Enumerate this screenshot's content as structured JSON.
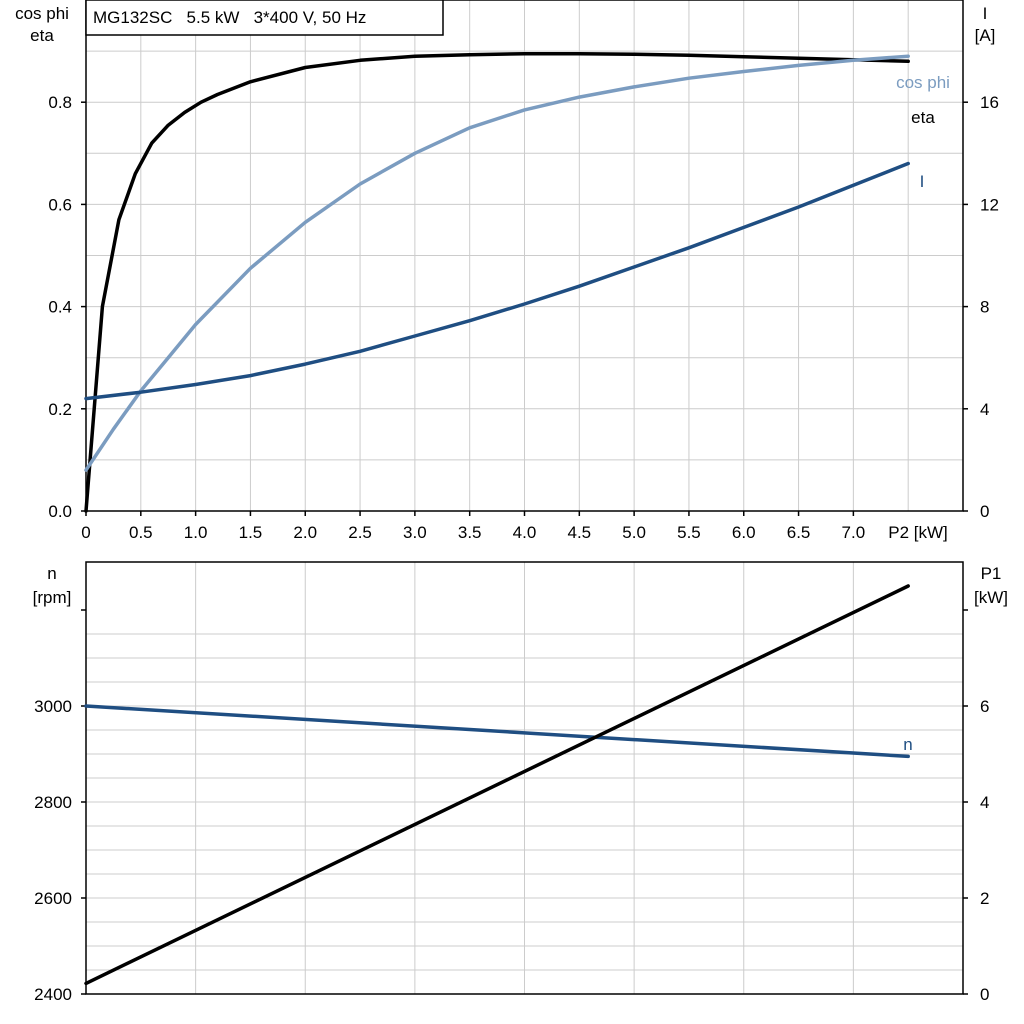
{
  "chart_data": [
    {
      "type": "line",
      "title": "MG132SC   5.5 kW   3*400 V, 50 Hz",
      "xlabel": "P2 [kW]",
      "ylabel_left": [
        "cos phi",
        "eta"
      ],
      "ylabel_right": [
        "I",
        "[A]"
      ],
      "xlim": [
        0,
        8
      ],
      "ylim_left": [
        0,
        1
      ],
      "ylim_right": [
        0,
        20
      ],
      "x_ticks": [
        0,
        0.5,
        1.0,
        1.5,
        2.0,
        2.5,
        3.0,
        3.5,
        4.0,
        4.5,
        5.0,
        5.5,
        6.0,
        6.5,
        7.0
      ],
      "x_tick_labels": [
        "0",
        "0.5",
        "1.0",
        "1.5",
        "2.0",
        "2.5",
        "3.0",
        "3.5",
        "4.0",
        "4.5",
        "5.0",
        "5.5",
        "6.0",
        "6.5",
        "7.0"
      ],
      "y_left_ticks": [
        0,
        0.2,
        0.4,
        0.6,
        0.8
      ],
      "y_left_tick_labels": [
        "0.0",
        "0.2",
        "0.4",
        "0.6",
        "0.8"
      ],
      "y_right_ticks": [
        0,
        4,
        8,
        12,
        16
      ],
      "y_right_tick_labels": [
        "0",
        "4",
        "8",
        "12",
        "16"
      ],
      "grid": true,
      "series": [
        {
          "name": "eta",
          "axis": "left",
          "color": "#000000",
          "x": [
            0,
            0.15,
            0.3,
            0.45,
            0.6,
            0.75,
            0.9,
            1.05,
            1.2,
            1.5,
            2.0,
            2.5,
            3.0,
            3.5,
            4.0,
            4.5,
            5.0,
            5.5,
            6.0,
            6.5,
            7.0,
            7.5
          ],
          "values": [
            0,
            0.4,
            0.57,
            0.66,
            0.72,
            0.755,
            0.78,
            0.8,
            0.815,
            0.84,
            0.868,
            0.882,
            0.89,
            0.893,
            0.895,
            0.895,
            0.894,
            0.892,
            0.889,
            0.886,
            0.883,
            0.88
          ]
        },
        {
          "name": "cos phi",
          "axis": "left",
          "color": "#7b9cc0",
          "x": [
            0,
            0.25,
            0.5,
            0.75,
            1.0,
            1.5,
            2.0,
            2.5,
            3.0,
            3.5,
            4.0,
            4.5,
            5.0,
            5.5,
            6.0,
            6.5,
            7.0,
            7.5
          ],
          "values": [
            0.08,
            0.16,
            0.235,
            0.3,
            0.365,
            0.475,
            0.565,
            0.64,
            0.7,
            0.75,
            0.785,
            0.81,
            0.83,
            0.847,
            0.86,
            0.872,
            0.882,
            0.89
          ]
        },
        {
          "name": "I",
          "axis": "right",
          "color": "#1f4e82",
          "x": [
            0,
            0.5,
            1.0,
            1.5,
            2.0,
            2.5,
            3.0,
            3.5,
            4.0,
            4.5,
            5.0,
            5.5,
            6.0,
            6.5,
            7.0,
            7.5
          ],
          "values": [
            4.4,
            4.65,
            4.95,
            5.3,
            5.75,
            6.25,
            6.85,
            7.45,
            8.1,
            8.8,
            9.55,
            10.3,
            11.1,
            11.9,
            12.75,
            13.6
          ]
        }
      ]
    },
    {
      "type": "line",
      "title": "",
      "xlabel": "",
      "ylabel_left": [
        "n",
        "[rpm]"
      ],
      "ylabel_right": [
        "P1",
        "[kW]"
      ],
      "xlim": [
        0,
        8
      ],
      "ylim_left": [
        2400,
        3200
      ],
      "ylim_right": [
        0,
        8
      ],
      "y_left_ticks": [
        2400,
        2600,
        2800,
        3000
      ],
      "y_left_tick_labels": [
        "2400",
        "2600",
        "2800",
        "3000"
      ],
      "y_right_ticks": [
        0,
        2,
        4,
        6
      ],
      "y_right_tick_labels": [
        "0",
        "2",
        "4",
        "6"
      ],
      "grid": true,
      "series": [
        {
          "name": "n",
          "axis": "left",
          "color": "#1f4e82",
          "x": [
            0,
            7.5
          ],
          "values": [
            3000,
            2895
          ]
        },
        {
          "name": "",
          "axis": "right",
          "color": "#000000",
          "x": [
            0,
            7.5
          ],
          "values": [
            0.22,
            8.5
          ]
        }
      ]
    }
  ]
}
